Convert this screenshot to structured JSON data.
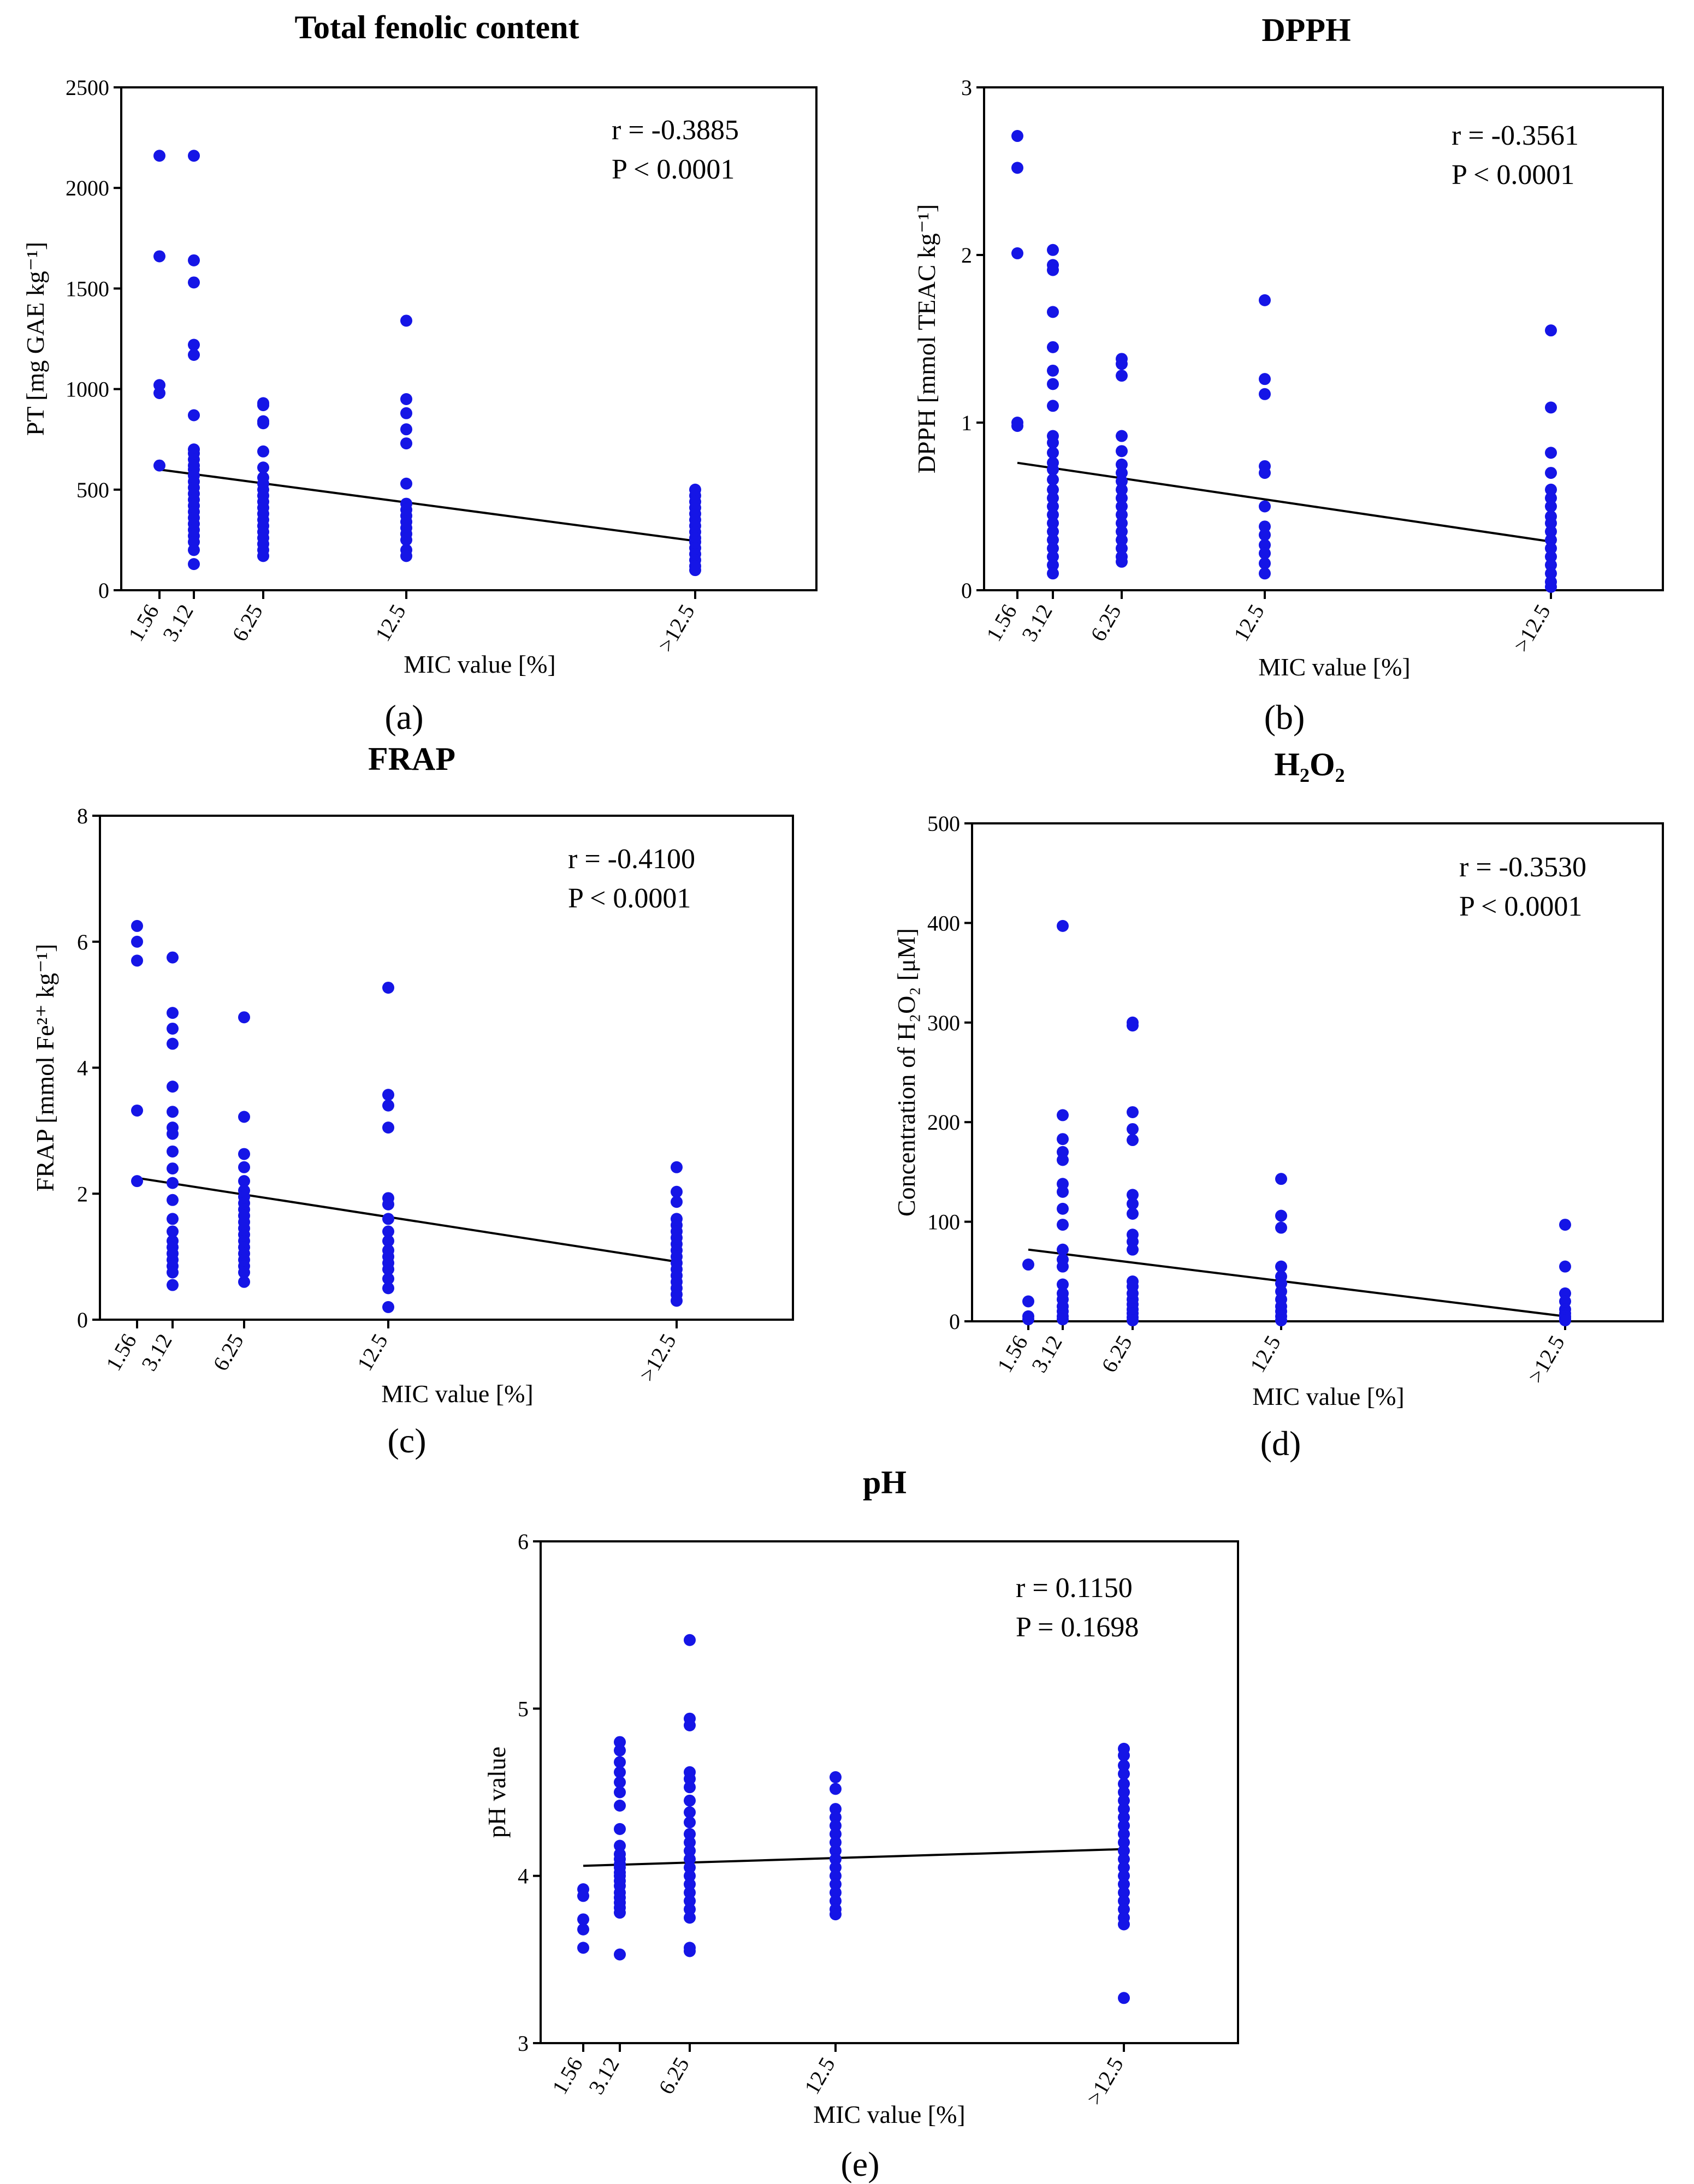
{
  "chart_data": [
    {
      "id": "a",
      "type": "scatter",
      "title": "Total fenolic content",
      "xlabel": "MIC value [%]",
      "ylabel": "PT [mg GAE kg⁻¹]",
      "panel_label": "(a)",
      "categories": [
        "1.56",
        "3.12",
        "6.25",
        "12.5",
        ">12.5"
      ],
      "ylim": [
        0,
        2500
      ],
      "yticks": [
        "0",
        "500",
        "1000",
        "1500",
        "2000",
        "2500"
      ],
      "stats": [
        "r = -0.3885",
        "P < 0.0001"
      ],
      "trend": [
        600,
        245
      ],
      "points": [
        [
          0,
          [
            2160,
            1660,
            1020,
            980,
            620
          ]
        ],
        [
          1,
          [
            2160,
            1640,
            1530,
            1220,
            1170,
            870,
            700,
            680,
            650,
            620,
            600,
            570,
            540,
            510,
            480,
            450,
            420,
            390,
            360,
            330,
            300,
            270,
            240,
            200,
            130
          ]
        ],
        [
          2,
          [
            930,
            920,
            840,
            830,
            690,
            610,
            560,
            530,
            500,
            470,
            440,
            410,
            380,
            350,
            320,
            290,
            260,
            230,
            200,
            170
          ]
        ],
        [
          3,
          [
            1340,
            950,
            880,
            800,
            730,
            530,
            430,
            400,
            370,
            340,
            310,
            280,
            250,
            200,
            170
          ]
        ],
        [
          4,
          [
            500,
            470,
            440,
            410,
            380,
            350,
            320,
            290,
            260,
            240,
            210,
            180,
            150,
            120,
            100
          ]
        ]
      ]
    },
    {
      "id": "b",
      "type": "scatter",
      "title": "DPPH",
      "xlabel": "MIC value [%]",
      "ylabel": "DPPH [mmol TEAC kg⁻¹]",
      "panel_label": "(b)",
      "categories": [
        "1.56",
        "3.12",
        "6.25",
        "12.5",
        ">12.5"
      ],
      "ylim": [
        0,
        3
      ],
      "yticks": [
        "0",
        "1",
        "2",
        "3"
      ],
      "stats": [
        "r = -0.3561",
        "P < 0.0001"
      ],
      "trend": [
        0.76,
        0.29
      ],
      "points": [
        [
          0,
          [
            2.71,
            2.52,
            2.01,
            1.0,
            0.98
          ]
        ],
        [
          1,
          [
            2.03,
            1.94,
            1.91,
            1.66,
            1.45,
            1.31,
            1.23,
            1.1,
            0.92,
            0.88,
            0.82,
            0.76,
            0.72,
            0.66,
            0.6,
            0.55,
            0.5,
            0.45,
            0.4,
            0.35,
            0.3,
            0.25,
            0.2,
            0.15,
            0.1
          ]
        ],
        [
          2,
          [
            1.38,
            1.35,
            1.28,
            0.92,
            0.83,
            0.75,
            0.7,
            0.65,
            0.6,
            0.55,
            0.5,
            0.45,
            0.4,
            0.35,
            0.3,
            0.25,
            0.2,
            0.17
          ]
        ],
        [
          3,
          [
            1.73,
            1.26,
            1.17,
            0.74,
            0.7,
            0.5,
            0.38,
            0.33,
            0.27,
            0.22,
            0.16,
            0.1
          ]
        ],
        [
          4,
          [
            1.55,
            1.09,
            0.82,
            0.7,
            0.6,
            0.55,
            0.5,
            0.44,
            0.4,
            0.35,
            0.3,
            0.25,
            0.2,
            0.15,
            0.1,
            0.05,
            0.02
          ]
        ]
      ]
    },
    {
      "id": "c",
      "type": "scatter",
      "title": "FRAP",
      "xlabel": "MIC value [%]",
      "ylabel": "FRAP [mmol Fe²⁺ kg⁻¹]",
      "panel_label": "(c)",
      "categories": [
        "1.56",
        "3.12",
        "6.25",
        "12.5",
        ">12.5"
      ],
      "ylim": [
        0,
        8
      ],
      "yticks": [
        "0",
        "2",
        "4",
        "6",
        "8"
      ],
      "stats": [
        "r = -0.4100",
        "P < 0.0001"
      ],
      "trend": [
        2.25,
        0.92
      ],
      "points": [
        [
          0,
          [
            6.25,
            6.0,
            5.7,
            3.32,
            2.2
          ]
        ],
        [
          1,
          [
            5.75,
            4.87,
            4.62,
            4.38,
            3.7,
            3.3,
            3.05,
            2.95,
            2.67,
            2.4,
            2.17,
            1.9,
            1.6,
            1.4,
            1.25,
            1.15,
            1.05,
            0.95,
            0.85,
            0.75,
            0.55
          ]
        ],
        [
          2,
          [
            4.8,
            3.22,
            2.63,
            2.42,
            2.2,
            2.05,
            1.95,
            1.85,
            1.75,
            1.65,
            1.55,
            1.45,
            1.35,
            1.25,
            1.15,
            1.05,
            0.95,
            0.85,
            0.75,
            0.6
          ]
        ],
        [
          3,
          [
            5.27,
            3.57,
            3.4,
            3.05,
            1.93,
            1.83,
            1.6,
            1.4,
            1.25,
            1.1,
            1.0,
            0.9,
            0.8,
            0.65,
            0.5,
            0.2
          ]
        ],
        [
          4,
          [
            2.42,
            2.03,
            1.87,
            1.6,
            1.5,
            1.4,
            1.3,
            1.2,
            1.1,
            1.0,
            0.9,
            0.8,
            0.7,
            0.6,
            0.5,
            0.4,
            0.3
          ]
        ]
      ]
    },
    {
      "id": "d",
      "type": "scatter",
      "title": "H₂O₂",
      "xlabel": "MIC  value [%]",
      "ylabel": "Concentration of H₂O₂ [μM]",
      "panel_label": "(d)",
      "categories": [
        "1.56",
        "3.12",
        "6.25",
        "12.5",
        ">12.5"
      ],
      "ylim": [
        0,
        500
      ],
      "yticks": [
        "0",
        "100",
        "200",
        "300",
        "400",
        "500"
      ],
      "stats": [
        "r = -0.3530",
        "P < 0.0001"
      ],
      "trend": [
        72,
        5
      ],
      "points": [
        [
          0,
          [
            57,
            20,
            5,
            2
          ]
        ],
        [
          1,
          [
            397,
            207,
            183,
            170,
            162,
            138,
            130,
            113,
            97,
            72,
            62,
            55,
            37,
            28,
            22,
            15,
            10,
            5,
            2
          ]
        ],
        [
          2,
          [
            300,
            297,
            210,
            193,
            182,
            127,
            118,
            108,
            87,
            80,
            72,
            40,
            35,
            28,
            22,
            17,
            12,
            8,
            4,
            1
          ]
        ],
        [
          3,
          [
            143,
            106,
            94,
            55,
            45,
            38,
            30,
            22,
            15,
            10,
            5,
            1
          ]
        ],
        [
          4,
          [
            97,
            55,
            28,
            20,
            12,
            8,
            5,
            3,
            1
          ]
        ]
      ]
    },
    {
      "id": "e",
      "type": "scatter",
      "title": "pH",
      "xlabel": "MIC  value [%]",
      "ylabel": "pH value",
      "panel_label": "(e)",
      "categories": [
        "1.56",
        "3.12",
        "6.25",
        "12.5",
        ">12.5"
      ],
      "ylim": [
        3,
        6
      ],
      "yticks": [
        "3",
        "4",
        "5",
        "6"
      ],
      "stats": [
        "r = 0.1150",
        "P = 0.1698"
      ],
      "trend": [
        4.06,
        4.16
      ],
      "points": [
        [
          0,
          [
            3.92,
            3.88,
            3.74,
            3.68,
            3.57
          ]
        ],
        [
          1,
          [
            4.8,
            4.75,
            4.68,
            4.62,
            4.56,
            4.5,
            4.42,
            4.28,
            4.18,
            4.13,
            4.1,
            4.07,
            4.05,
            4.02,
            4.0,
            3.97,
            3.94,
            3.9,
            3.87,
            3.84,
            3.81,
            3.78,
            3.53
          ]
        ],
        [
          2,
          [
            5.41,
            4.94,
            4.9,
            4.62,
            4.58,
            4.53,
            4.45,
            4.38,
            4.32,
            4.25,
            4.2,
            4.15,
            4.1,
            4.05,
            4.0,
            3.95,
            3.9,
            3.85,
            3.8,
            3.75,
            3.57,
            3.55
          ]
        ],
        [
          3,
          [
            4.59,
            4.52,
            4.4,
            4.35,
            4.3,
            4.25,
            4.2,
            4.15,
            4.1,
            4.05,
            4.0,
            3.95,
            3.9,
            3.85,
            3.8,
            3.77
          ]
        ],
        [
          4,
          [
            4.76,
            4.72,
            4.66,
            4.61,
            4.55,
            4.5,
            4.45,
            4.4,
            4.35,
            4.3,
            4.25,
            4.2,
            4.15,
            4.1,
            4.05,
            4.0,
            3.95,
            3.9,
            3.85,
            3.8,
            3.75,
            3.71,
            3.27
          ]
        ]
      ]
    }
  ],
  "colors": {
    "points": "#1515e6",
    "trend": "#000000"
  }
}
